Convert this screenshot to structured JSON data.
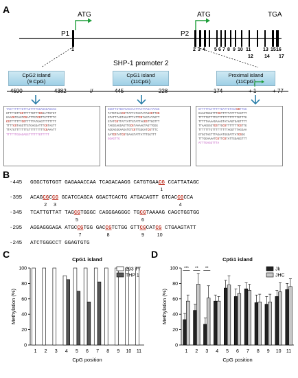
{
  "panel_a": {
    "letter": "A",
    "atg1": "ATG",
    "atg2": "ATG",
    "tga": "TGA",
    "p1": "P1",
    "p2": "P2",
    "exon_numbers": [
      "1",
      "2",
      "3",
      "4",
      "5",
      "6",
      "7",
      "8",
      "9",
      "10",
      "11",
      "12",
      "13",
      "14",
      "15",
      "16",
      "17"
    ],
    "promoter_title": "SHP-1 promoter 2",
    "islands": [
      {
        "name": "CpG2 island",
        "count": "(9 CpG)"
      },
      {
        "name": "CpG1 island",
        "count": "(11CpG)"
      },
      {
        "name": "Proximal island",
        "count": "(11CpG)"
      }
    ],
    "coords": [
      "- 4590",
      "- 4382",
      "- 445",
      "- 228",
      "- 174",
      "+ 1",
      "+ 77"
    ],
    "break_mark": "//",
    "seq_box1": [
      "TAGTTTTTTGTTAGTTTTGGAGGGAGGAG",
      "GTTTTGTTCGTTTTTGTTTCGGATTGTGT",
      "GAACGTGAGTCGATTTGTCGTTGTTTTTC",
      "CGTTTTTTTCGTTTTTATGAGTTTTTTTT",
      "TTTTCGTAGGTTGTGAGGATTTCGTAGTT",
      "TTATGTTTTTTTGTTTTTTTTTCGAAATT",
      "TTTTTTGGAGAGGTTTTTTGTTTTT"
    ],
    "seq_box2": [
      "GGGTTGTGGTGAGAAATTAATTAGATAAGG",
      "TATGTGAACGTTATTATAGTATAGCGTTCG",
      "GTATTTAGTAGATTTATTCGTAGTATAGTT",
      "GTATCGTTATTATTGTATTAGCGTTGGTTT",
      "TAGGGAGGAGTTGCGTAAAAGTAGTTGGG",
      "AGGAGGGAAGATGTCGTTGGGATCGTTTC",
      "GATCGTATCGTGAAGTATTATTTGGTTT",
      "GGAGTTG"
    ],
    "seq_box3": [
      "GTTTTTGATTTTTGATTGTAGACGTTGG",
      "GAAGTGGGTTTCGTTTTTATTTTAGTTT",
      "TTTTTGTTTTGTTTTTTTTTTTTGTTTG",
      "TTTTTAAAAGAAAGTATAAGTGAGTTTT",
      "TTAAGGGGTCGTTGCGTTTTTTTCGTTG",
      "TTTTTTTGTTTTTTTTTAGGTTTAGGAA",
      "GTGGTAGTTTAGAATGGGATTATCGGG",
      "TTTGGAAAATCGTTCGTATTGGAGGTTT",
      "ATTTGAGGTTTA"
    ]
  },
  "panel_b": {
    "letter": "B",
    "lines": [
      {
        "pos": "-445",
        "seq": "GGGCTGTGGT GAGAAACCAA TCAGACAAGG CATGTGAACG CCATTATAGC"
      },
      {
        "pos": "-395",
        "seq": "ACAGCGCCG GCATCCAGCA GGACTCACTG ATGACAGTT GTCACCGCCA"
      },
      {
        "pos": "-345",
        "seq": "TCATTGTTAT TAGCGTGGGC CAGGGAGGGC TGCGTAAAAG CAGCTGGTGG"
      },
      {
        "pos": "-295",
        "seq": "AGGAGGGAGA ATGCCGTGG GACCGTCTGG GTTCGCATCG CTGAAGTATT"
      },
      {
        "pos": "-245",
        "seq": "ATCTGGGCCT GGAGTGTG"
      }
    ],
    "cpg_labels": [
      "1",
      "2",
      "3",
      "4",
      "5",
      "6",
      "7",
      "8",
      "9",
      "10",
      "11"
    ]
  },
  "panel_c": {
    "letter": "C",
    "title": "CpG1 island",
    "ylabel": "Methylation (%)",
    "xlabel": "CpG position",
    "legend": [
      "293 TT",
      "THP 1"
    ]
  },
  "panel_d": {
    "letter": "D",
    "title": "CpG1 island",
    "ylabel": "Methylation (%)",
    "xlabel": "CpG position",
    "legend": [
      "Jk",
      "JHC"
    ],
    "sig": [
      "***",
      "**",
      "**"
    ]
  },
  "chart_data": [
    {
      "type": "bar",
      "title": "CpG1 island",
      "xlabel": "CpG position",
      "ylabel": "Methylation (%)",
      "ylim": [
        0,
        100
      ],
      "yticks": [
        0,
        20,
        40,
        60,
        80,
        100
      ],
      "categories": [
        "1",
        "2",
        "3",
        "4",
        "5",
        "6",
        "7",
        "8",
        "9",
        "10",
        "11"
      ],
      "series": [
        {
          "name": "293 TT",
          "color": "#ffffff",
          "values": [
            100,
            100,
            100,
            90,
            100,
            100,
            100,
            100,
            100,
            100,
            100
          ]
        },
        {
          "name": "THP 1",
          "color": "#555555",
          "values": [
            0,
            0,
            0,
            85,
            70,
            56,
            82,
            0,
            0,
            0,
            0
          ]
        }
      ],
      "legend": "top-right",
      "grid": false
    },
    {
      "type": "bar",
      "title": "CpG1 island",
      "xlabel": "CpG position",
      "ylabel": "Methylation (%)",
      "ylim": [
        0,
        100
      ],
      "yticks": [
        0,
        20,
        40,
        60,
        80,
        100
      ],
      "categories": [
        "1",
        "2",
        "3",
        "4",
        "5",
        "6",
        "7",
        "8",
        "9",
        "10",
        "11"
      ],
      "series": [
        {
          "name": "Jk",
          "color": "#222222",
          "values": [
            33,
            45,
            27,
            57,
            74,
            63,
            73,
            55,
            53,
            63,
            72
          ],
          "err": [
            8,
            8,
            8,
            8,
            10,
            10,
            8,
            10,
            10,
            8,
            8
          ]
        },
        {
          "name": "JHC",
          "color": "#c8c8c8",
          "values": [
            57,
            79,
            61,
            57,
            78,
            67,
            71,
            56,
            56,
            69,
            76
          ],
          "err": [
            8,
            14,
            16,
            6,
            12,
            10,
            8,
            10,
            10,
            12,
            10
          ]
        }
      ],
      "legend": "top-right",
      "grid": false
    }
  ]
}
